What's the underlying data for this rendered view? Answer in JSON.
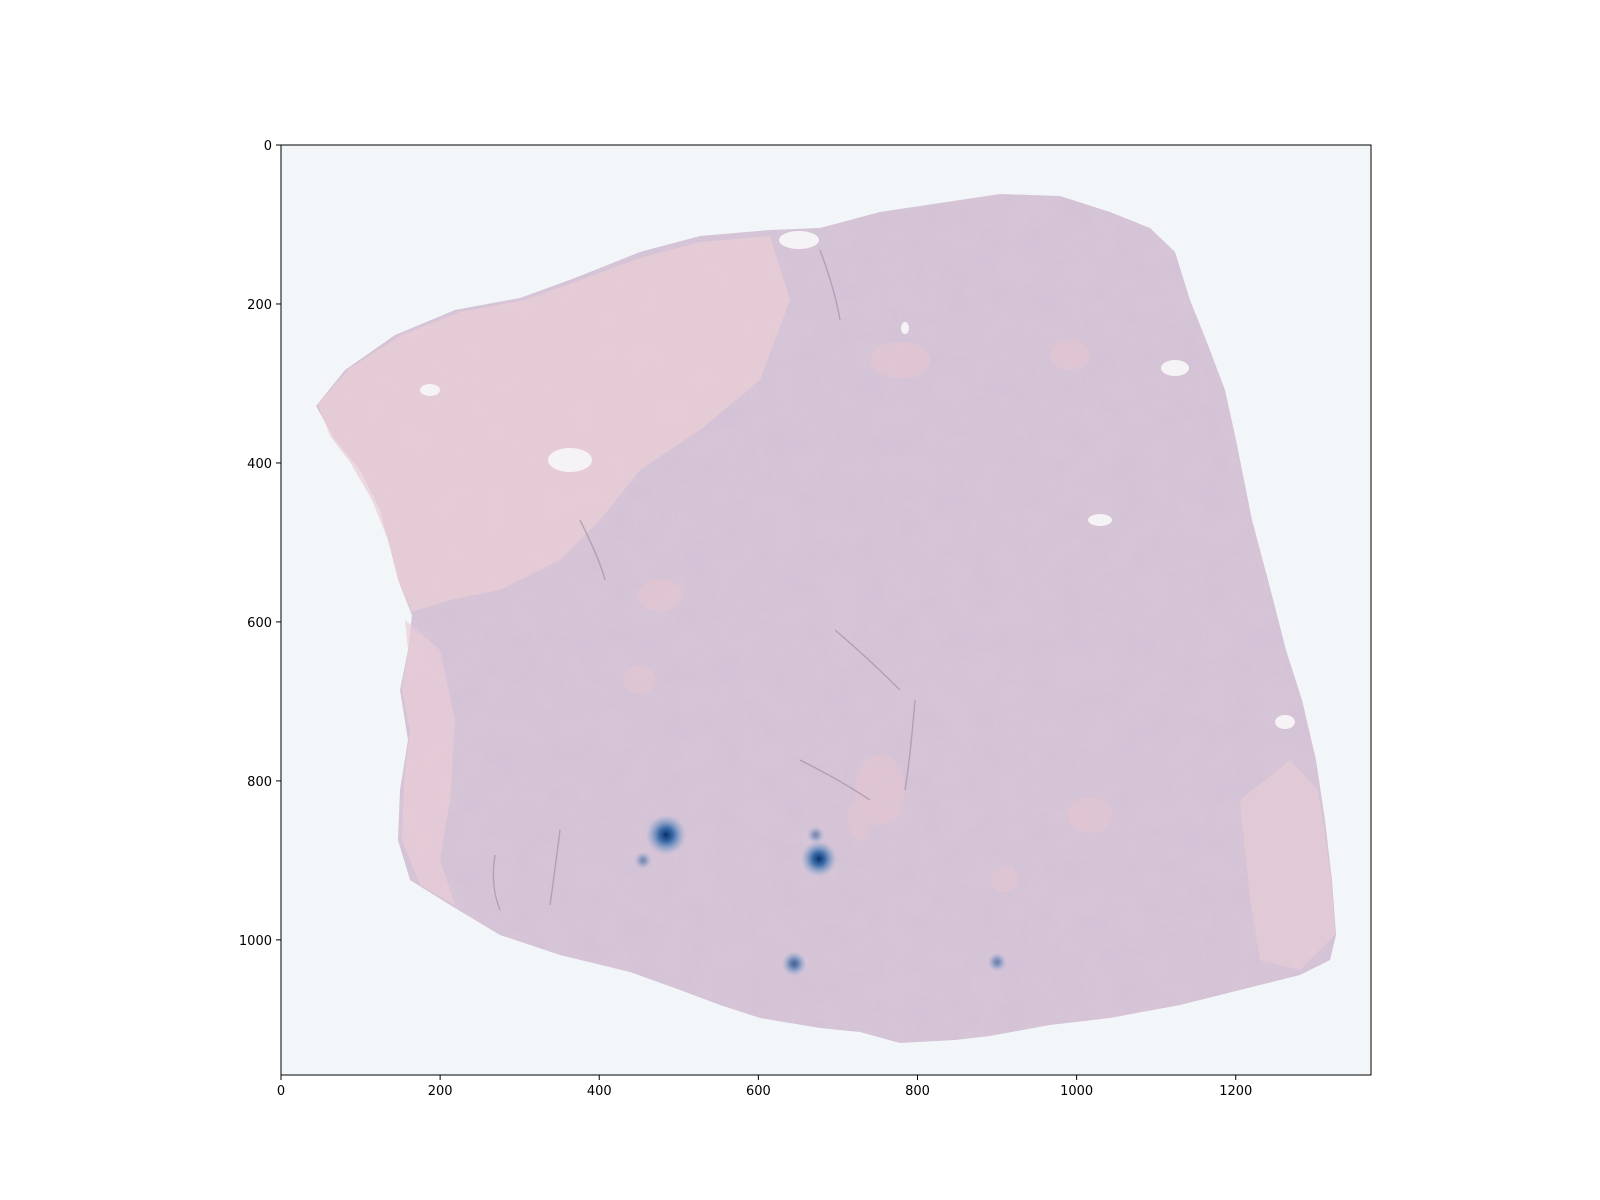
{
  "figure": {
    "type": "image-overlay",
    "description_key": "tissue-heatmap"
  },
  "chart_data": {
    "type": "heatmap",
    "title": "",
    "xlabel": "",
    "ylabel": "",
    "xlim": [
      0,
      1370
    ],
    "ylim": [
      1170,
      0
    ],
    "x_ticks": [
      "0",
      "200",
      "400",
      "600",
      "800",
      "1000",
      "1200"
    ],
    "y_ticks": [
      "0",
      "200",
      "400",
      "600",
      "800",
      "1000"
    ],
    "grid": false,
    "colormap": "Blues",
    "hotspots": [
      {
        "x": 484,
        "y": 868,
        "intensity": 1.0
      },
      {
        "x": 676,
        "y": 898,
        "intensity": 0.85
      },
      {
        "x": 645,
        "y": 1030,
        "intensity": 0.45
      },
      {
        "x": 900,
        "y": 1028,
        "intensity": 0.25
      },
      {
        "x": 455,
        "y": 900,
        "intensity": 0.2
      },
      {
        "x": 672,
        "y": 868,
        "intensity": 0.2
      }
    ]
  },
  "colors": {
    "background": "#f3f6f9",
    "tissue": "#d8c6d8",
    "tissue_edge": "#e6c3cc",
    "hotspot": "#08306b"
  }
}
